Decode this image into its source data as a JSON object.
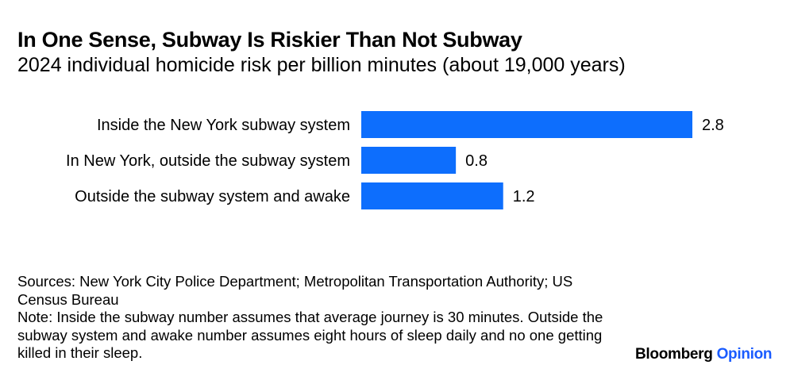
{
  "chart_data": {
    "type": "bar",
    "orientation": "horizontal",
    "title": "In One Sense, Subway Is Riskier Than Not Subway",
    "subtitle": "2024 individual homicide risk per billion minutes (about 19,000 years)",
    "categories": [
      "Inside the New York subway system",
      "In New York, outside the subway system",
      "Outside the subway system and awake"
    ],
    "values": [
      2.8,
      0.8,
      1.2
    ],
    "value_labels": [
      "2.8",
      "0.8",
      "1.2"
    ],
    "xlim": [
      0,
      2.8
    ],
    "grid": false,
    "bar_color": "#0d6efd"
  },
  "footer": {
    "sources": "Sources: New York City Police Department; Metropolitan Transportation Authority; US Census Bureau",
    "note": "Note: Inside the subway number assumes that average journey is 30 minutes. Outside the subway system and awake number assumes eight hours of sleep daily and no one getting killed in their sleep."
  },
  "brand": {
    "name": "Bloomberg",
    "section": "Opinion"
  },
  "colors": {
    "bar": "#0d6efd",
    "brand_accent": "#1a5cff"
  }
}
